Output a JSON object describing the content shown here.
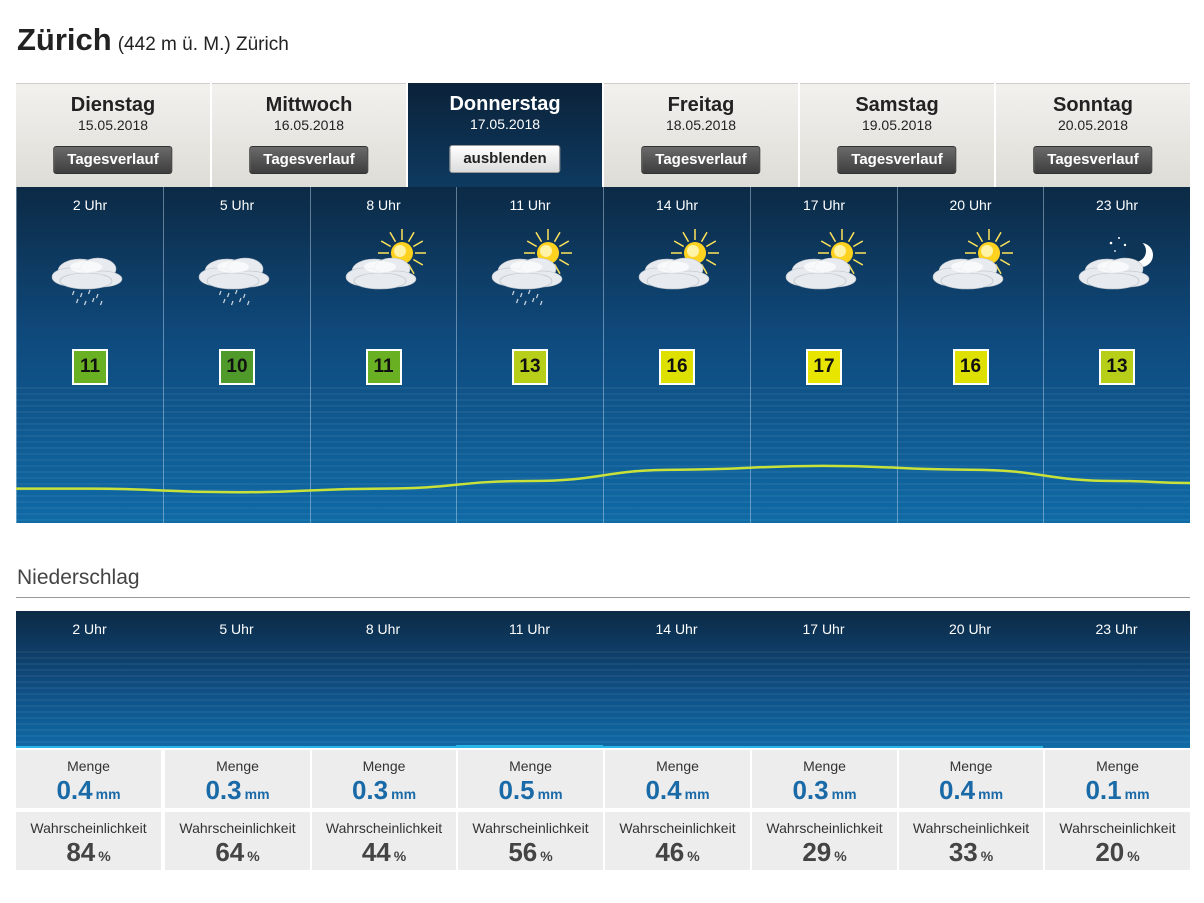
{
  "header": {
    "city": "Zürich",
    "altitude_text": "(442 m ü. M.) Zürich"
  },
  "days": [
    {
      "name": "Dienstag",
      "date": "15.05.2018",
      "button": "Tagesverlauf",
      "active": false
    },
    {
      "name": "Mittwoch",
      "date": "16.05.2018",
      "button": "Tagesverlauf",
      "active": false
    },
    {
      "name": "Donnerstag",
      "date": "17.05.2018",
      "button": "ausblenden",
      "active": true
    },
    {
      "name": "Freitag",
      "date": "18.05.2018",
      "button": "Tagesverlauf",
      "active": false
    },
    {
      "name": "Samstag",
      "date": "19.05.2018",
      "button": "Tagesverlauf",
      "active": false
    },
    {
      "name": "Sonntag",
      "date": "20.05.2018",
      "button": "Tagesverlauf",
      "active": false
    }
  ],
  "hourly": [
    {
      "time": "2 Uhr",
      "temp": "11",
      "icon": "rain-cloud-icon",
      "temp_color": "#6ab023"
    },
    {
      "time": "5 Uhr",
      "temp": "10",
      "icon": "rain-cloud-icon",
      "temp_color": "#4f9a2a"
    },
    {
      "time": "8 Uhr",
      "temp": "11",
      "icon": "sun-cloud-icon",
      "temp_color": "#6ab023"
    },
    {
      "time": "11 Uhr",
      "temp": "13",
      "icon": "sun-cloud-rain-icon",
      "temp_color": "#b8cf1a"
    },
    {
      "time": "14 Uhr",
      "temp": "16",
      "icon": "sun-cloud-icon",
      "temp_color": "#dde000"
    },
    {
      "time": "17 Uhr",
      "temp": "17",
      "icon": "sun-cloud-icon",
      "temp_color": "#e8e600"
    },
    {
      "time": "20 Uhr",
      "temp": "16",
      "icon": "sun-cloud-icon",
      "temp_color": "#dde000"
    },
    {
      "time": "23 Uhr",
      "temp": "13",
      "icon": "moon-cloud-icon",
      "temp_color": "#b8cf1a"
    }
  ],
  "precipitation": {
    "title": "Niederschlag",
    "amount_label": "Menge",
    "amount_unit": "mm",
    "prob_label": "Wahrscheinlichkeit",
    "prob_unit": "%",
    "hours": [
      {
        "time": "2 Uhr",
        "amount": "0.4",
        "prob": "84"
      },
      {
        "time": "5 Uhr",
        "amount": "0.3",
        "prob": "64"
      },
      {
        "time": "8 Uhr",
        "amount": "0.3",
        "prob": "44"
      },
      {
        "time": "11 Uhr",
        "amount": "0.5",
        "prob": "56"
      },
      {
        "time": "14 Uhr",
        "amount": "0.4",
        "prob": "46"
      },
      {
        "time": "17 Uhr",
        "amount": "0.3",
        "prob": "29"
      },
      {
        "time": "20 Uhr",
        "amount": "0.4",
        "prob": "33"
      },
      {
        "time": "23 Uhr",
        "amount": "0.1",
        "prob": "20"
      }
    ]
  },
  "colors": {
    "curve": "#c9e23a",
    "precip_bar": "#29b6e6"
  }
}
